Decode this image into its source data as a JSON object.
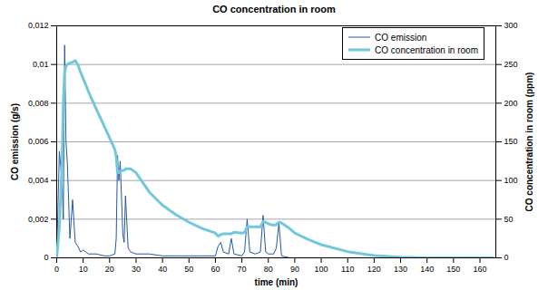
{
  "chart_data": {
    "type": "line",
    "title": "CO concentration in room",
    "xlabel": "time (min)",
    "ylabel": "CO emission (g/s)",
    "y2label": "CO concentration in room (ppm)",
    "x": [
      0,
      1,
      2,
      2.5,
      3,
      3.5,
      4,
      5,
      6,
      7,
      8,
      9,
      10,
      12,
      15,
      18,
      20,
      22,
      22.5,
      23,
      23.5,
      24,
      25,
      25.5,
      26,
      27,
      28,
      30,
      35,
      40,
      45,
      50,
      55,
      60,
      61,
      62,
      63,
      65,
      66,
      67,
      70,
      71,
      72,
      73,
      75,
      77,
      78,
      79,
      80,
      82,
      83,
      84,
      85,
      88,
      90,
      95,
      100,
      110,
      120,
      130,
      140,
      150,
      160,
      165
    ],
    "series": [
      {
        "name": "CO emission",
        "color": "#2458a8",
        "axis": "y",
        "values": [
          0,
          0.0055,
          0.004,
          0.002,
          0.011,
          0.006,
          0.005,
          0.001,
          0.003,
          0.0008,
          0.0006,
          0.0003,
          0.0004,
          0.0002,
          0.0002,
          0.0001,
          0.0001,
          0.0002,
          0.001,
          0.0053,
          0.004,
          0.005,
          0.0012,
          0.0008,
          0.0032,
          0.0005,
          0.0003,
          0.0002,
          0.0002,
          0.0001,
          0.0001,
          0.0001,
          0.0001,
          0.0001,
          0.0006,
          0.0008,
          0.0003,
          0.0002,
          0.001,
          0.0002,
          0.0001,
          0.0003,
          0.002,
          0.0003,
          0.0002,
          0.0003,
          0.0022,
          0.0003,
          0.0002,
          0.0002,
          0.0005,
          0.0018,
          0.0001,
          0,
          0,
          0,
          0,
          0,
          0,
          0,
          0,
          0,
          0,
          0
        ]
      },
      {
        "name": "CO concentration in room",
        "color": "#72c8da",
        "axis": "y2",
        "values": [
          0,
          40,
          120,
          200,
          240,
          248,
          250,
          252,
          253,
          255,
          250,
          240,
          232,
          215,
          192,
          170,
          155,
          140,
          130,
          110,
          110,
          112,
          113,
          113,
          115,
          115,
          115,
          110,
          85,
          68,
          56,
          46,
          38,
          32,
          28,
          30,
          31,
          31,
          31,
          33,
          32,
          33,
          40,
          40,
          40,
          40,
          47,
          46,
          44,
          42,
          43,
          46,
          45,
          38,
          32,
          24,
          17,
          8,
          3,
          1,
          0,
          0,
          0,
          0
        ]
      }
    ],
    "xlim": [
      0,
      166
    ],
    "xticks": [
      0,
      10,
      20,
      30,
      40,
      50,
      60,
      70,
      80,
      90,
      100,
      110,
      120,
      130,
      140,
      150,
      160
    ],
    "ylim": [
      0,
      0.012
    ],
    "yticks": [
      0,
      {
        "value": 0.002,
        "label": "0,002"
      },
      {
        "value": 0.004,
        "label": "0,004"
      },
      {
        "value": 0.006,
        "label": "0,006"
      },
      {
        "value": 0.008,
        "label": "0,008"
      },
      {
        "value": 0.01,
        "label": "0,01"
      },
      {
        "value": 0.012,
        "label": "0,012"
      }
    ],
    "y2lim": [
      0,
      300
    ],
    "y2ticks": [
      0,
      50,
      100,
      150,
      200,
      250,
      300
    ],
    "grid": true,
    "legend": "top-right"
  }
}
